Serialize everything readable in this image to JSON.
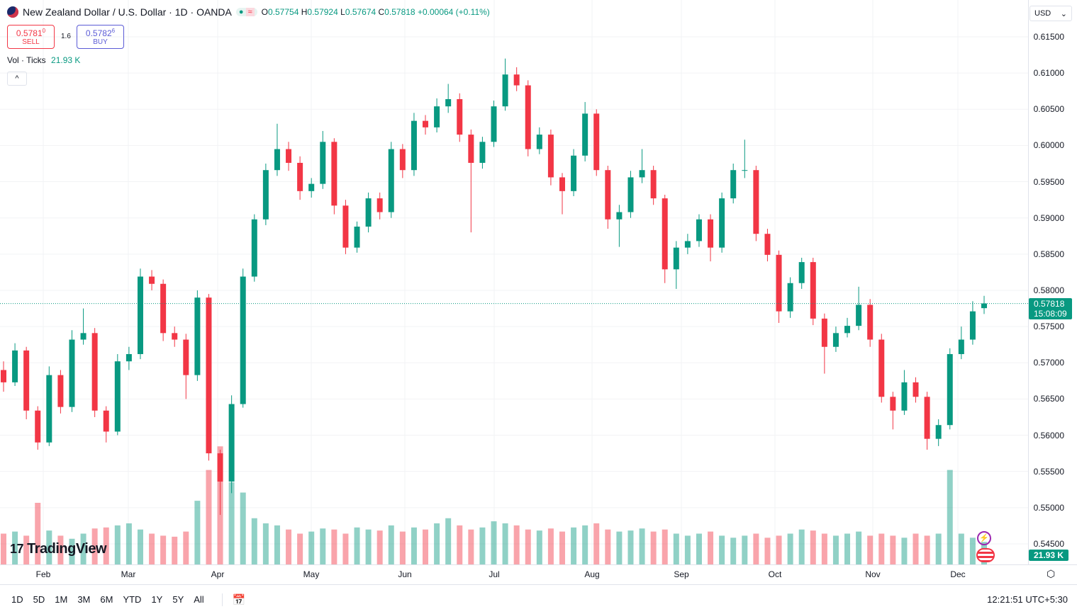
{
  "header": {
    "title": "New Zealand Dollar / U.S. Dollar · 1D · OANDA",
    "o_label": "O",
    "o": "0.57754",
    "h_label": "H",
    "h": "0.57924",
    "l_label": "L",
    "l": "0.57674",
    "c_label": "C",
    "c": "0.57818",
    "change": "+0.00064 (+0.11%)"
  },
  "trade": {
    "sell_price": "0.5781",
    "sell_sup": "0",
    "sell_label": "SELL",
    "spread": "1.6",
    "buy_price": "0.5782",
    "buy_sup": "6",
    "buy_label": "BUY"
  },
  "volume_legend": {
    "label": "Vol · Ticks",
    "value": "21.93 K"
  },
  "currency": "USD",
  "logo": "TradingView",
  "last_price_tag": {
    "price": "0.57818",
    "countdown": "15:08:09"
  },
  "volume_tag": "21.93 K",
  "range_buttons": [
    "1D",
    "5D",
    "1M",
    "3M",
    "6M",
    "YTD",
    "1Y",
    "5Y",
    "All"
  ],
  "clock": "12:21:51 UTC+5:30",
  "colors": {
    "up": "#089981",
    "down": "#f23645",
    "buy": "#5b5bd6"
  },
  "chart_data": {
    "type": "candlestick",
    "symbol": "NZDUSD",
    "interval": "1D",
    "y_ticks": [
      "0.61500",
      "0.61000",
      "0.60500",
      "0.60000",
      "0.59500",
      "0.59000",
      "0.58500",
      "0.58000",
      "0.57500",
      "0.57000",
      "0.56500",
      "0.56000",
      "0.55500",
      "0.55000",
      "0.54500"
    ],
    "ylim": [
      0.545,
      0.615
    ],
    "x_ticks": [
      "Feb",
      "Mar",
      "Apr",
      "May",
      "Jun",
      "Jul",
      "Aug",
      "Sep",
      "Oct",
      "Nov",
      "Dec"
    ],
    "grid": true,
    "candles": [
      [
        0.569,
        0.5702,
        0.566,
        0.5673
      ],
      [
        0.5673,
        0.5727,
        0.5668,
        0.5717
      ],
      [
        0.5717,
        0.5722,
        0.5622,
        0.5634
      ],
      [
        0.5634,
        0.564,
        0.558,
        0.559
      ],
      [
        0.559,
        0.5695,
        0.5585,
        0.5683
      ],
      [
        0.5683,
        0.569,
        0.563,
        0.5639
      ],
      [
        0.5639,
        0.5745,
        0.5632,
        0.5732
      ],
      [
        0.5732,
        0.5775,
        0.5725,
        0.5741
      ],
      [
        0.5741,
        0.5748,
        0.5625,
        0.5634
      ],
      [
        0.5634,
        0.564,
        0.559,
        0.5605
      ],
      [
        0.5605,
        0.5712,
        0.56,
        0.5702
      ],
      [
        0.5702,
        0.5722,
        0.569,
        0.5712
      ],
      [
        0.5712,
        0.583,
        0.5705,
        0.5819
      ],
      [
        0.5819,
        0.5828,
        0.58,
        0.5809
      ],
      [
        0.5809,
        0.5815,
        0.573,
        0.5741
      ],
      [
        0.5741,
        0.575,
        0.5722,
        0.5732
      ],
      [
        0.5732,
        0.574,
        0.565,
        0.5683
      ],
      [
        0.5683,
        0.58,
        0.5675,
        0.579
      ],
      [
        0.579,
        0.5795,
        0.5565,
        0.5575
      ],
      [
        0.5575,
        0.558,
        0.549,
        0.5536
      ],
      [
        0.5536,
        0.5655,
        0.552,
        0.5643
      ],
      [
        0.5643,
        0.583,
        0.5638,
        0.5819
      ],
      [
        0.5819,
        0.5905,
        0.5812,
        0.5898
      ],
      [
        0.5898,
        0.5975,
        0.589,
        0.5966
      ],
      [
        0.5966,
        0.603,
        0.5958,
        0.5995
      ],
      [
        0.5995,
        0.6005,
        0.5965,
        0.5976
      ],
      [
        0.5976,
        0.5985,
        0.5925,
        0.5937
      ],
      [
        0.5937,
        0.5955,
        0.5928,
        0.5947
      ],
      [
        0.5947,
        0.602,
        0.594,
        0.6005
      ],
      [
        0.6005,
        0.601,
        0.5905,
        0.5917
      ],
      [
        0.5917,
        0.5925,
        0.585,
        0.5859
      ],
      [
        0.5859,
        0.5895,
        0.5852,
        0.5888
      ],
      [
        0.5888,
        0.5935,
        0.588,
        0.5927
      ],
      [
        0.5927,
        0.5935,
        0.5898,
        0.5908
      ],
      [
        0.5908,
        0.6005,
        0.59,
        0.5995
      ],
      [
        0.5995,
        0.6002,
        0.5955,
        0.5966
      ],
      [
        0.5966,
        0.6045,
        0.5958,
        0.6034
      ],
      [
        0.6034,
        0.6042,
        0.6015,
        0.6025
      ],
      [
        0.6025,
        0.6065,
        0.6018,
        0.6054
      ],
      [
        0.6054,
        0.6085,
        0.6045,
        0.6064
      ],
      [
        0.6064,
        0.6072,
        0.6005,
        0.6015
      ],
      [
        0.6015,
        0.6022,
        0.588,
        0.5976
      ],
      [
        0.5976,
        0.6012,
        0.5968,
        0.6005
      ],
      [
        0.6005,
        0.6062,
        0.5998,
        0.6054
      ],
      [
        0.6054,
        0.612,
        0.6048,
        0.6098
      ],
      [
        0.6098,
        0.6108,
        0.6075,
        0.6083
      ],
      [
        0.6083,
        0.609,
        0.5985,
        0.5995
      ],
      [
        0.5995,
        0.6025,
        0.5988,
        0.6015
      ],
      [
        0.6015,
        0.6022,
        0.5945,
        0.5956
      ],
      [
        0.5956,
        0.5962,
        0.5905,
        0.5937
      ],
      [
        0.5937,
        0.5995,
        0.593,
        0.5986
      ],
      [
        0.5986,
        0.606,
        0.5978,
        0.6044
      ],
      [
        0.6044,
        0.605,
        0.5958,
        0.5966
      ],
      [
        0.5966,
        0.5972,
        0.5885,
        0.5898
      ],
      [
        0.5898,
        0.5918,
        0.586,
        0.5908
      ],
      [
        0.5908,
        0.5965,
        0.59,
        0.5956
      ],
      [
        0.5956,
        0.5995,
        0.5948,
        0.5966
      ],
      [
        0.5966,
        0.5972,
        0.5918,
        0.5927
      ],
      [
        0.5927,
        0.5932,
        0.581,
        0.5829
      ],
      [
        0.5829,
        0.5868,
        0.5802,
        0.5859
      ],
      [
        0.5859,
        0.5878,
        0.585,
        0.5868
      ],
      [
        0.5868,
        0.5905,
        0.586,
        0.5898
      ],
      [
        0.5898,
        0.5905,
        0.584,
        0.5859
      ],
      [
        0.5859,
        0.5935,
        0.5852,
        0.5927
      ],
      [
        0.5927,
        0.5975,
        0.592,
        0.5966
      ],
      [
        0.5966,
        0.6008,
        0.5955,
        0.5966
      ],
      [
        0.5966,
        0.5972,
        0.5868,
        0.5878
      ],
      [
        0.5878,
        0.5885,
        0.584,
        0.5849
      ],
      [
        0.5849,
        0.5855,
        0.5755,
        0.5771
      ],
      [
        0.5771,
        0.5818,
        0.5762,
        0.581
      ],
      [
        0.581,
        0.5845,
        0.5802,
        0.5839
      ],
      [
        0.5839,
        0.5845,
        0.5752,
        0.5761
      ],
      [
        0.5761,
        0.5768,
        0.5685,
        0.5722
      ],
      [
        0.5722,
        0.575,
        0.5715,
        0.5741
      ],
      [
        0.5741,
        0.5762,
        0.5735,
        0.5751
      ],
      [
        0.5751,
        0.5805,
        0.5745,
        0.578
      ],
      [
        0.578,
        0.5788,
        0.5722,
        0.5732
      ],
      [
        0.5732,
        0.574,
        0.5645,
        0.5653
      ],
      [
        0.5653,
        0.566,
        0.5608,
        0.5634
      ],
      [
        0.5634,
        0.569,
        0.5628,
        0.5673
      ],
      [
        0.5673,
        0.568,
        0.5645,
        0.5653
      ],
      [
        0.5653,
        0.566,
        0.558,
        0.5595
      ],
      [
        0.5595,
        0.5622,
        0.5585,
        0.5614
      ],
      [
        0.5614,
        0.572,
        0.5608,
        0.5712
      ],
      [
        0.5712,
        0.575,
        0.5705,
        0.5732
      ],
      [
        0.5732,
        0.5785,
        0.5725,
        0.5771
      ],
      [
        0.57754,
        0.57924,
        0.57674,
        0.57818
      ]
    ],
    "volume_k": [
      30,
      32,
      28,
      60,
      33,
      28,
      25,
      30,
      35,
      36,
      38,
      40,
      34,
      30,
      28,
      27,
      32,
      62,
      92,
      115,
      80,
      70,
      45,
      40,
      38,
      34,
      30,
      32,
      35,
      34,
      30,
      36,
      34,
      33,
      38,
      32,
      36,
      34,
      40,
      45,
      38,
      34,
      36,
      42,
      40,
      38,
      34,
      33,
      35,
      32,
      36,
      38,
      40,
      34,
      32,
      33,
      35,
      32,
      34,
      30,
      28,
      30,
      32,
      28,
      26,
      28,
      30,
      26,
      28,
      30,
      34,
      33,
      30,
      28,
      30,
      32,
      28,
      30,
      28,
      26,
      30,
      28,
      30,
      92,
      30,
      26,
      21.93
    ]
  }
}
